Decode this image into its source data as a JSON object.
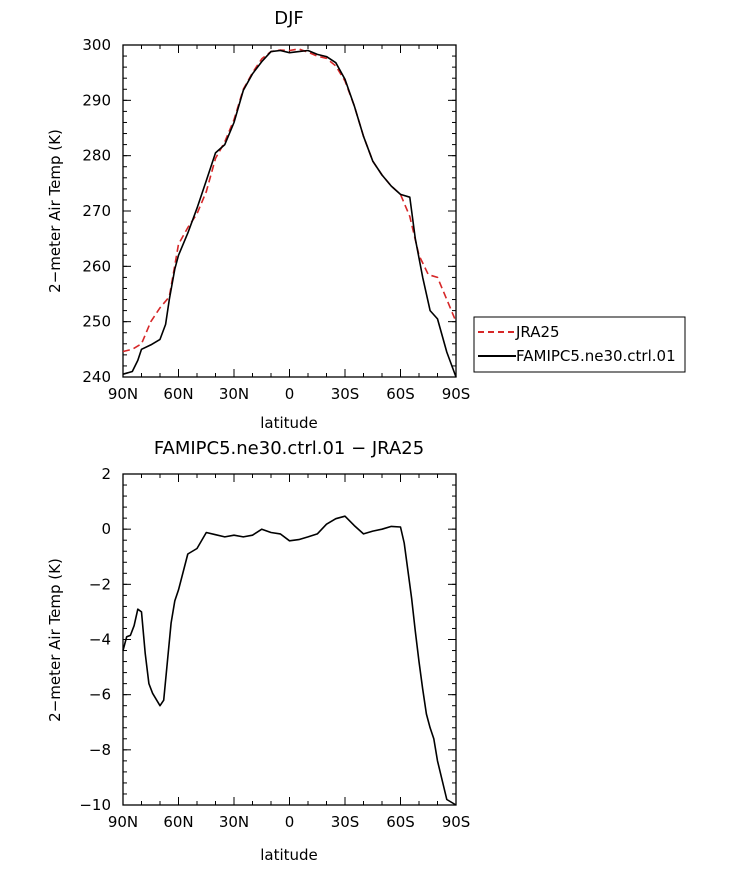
{
  "chart_data": [
    {
      "type": "line",
      "title": "DJF",
      "xlabel": "latitude",
      "ylabel": "2−meter Air Temp (K)",
      "x_ticks": [
        {
          "lat": -90,
          "label": "90N"
        },
        {
          "lat": -60,
          "label": "60N"
        },
        {
          "lat": -30,
          "label": "30N"
        },
        {
          "lat": 0,
          "label": "0"
        },
        {
          "lat": 30,
          "label": "30S"
        },
        {
          "lat": 60,
          "label": "60S"
        },
        {
          "lat": 90,
          "label": "90S"
        }
      ],
      "xlim": [
        -90,
        90
      ],
      "ylim": [
        240,
        300
      ],
      "y_ticks": [
        240,
        250,
        260,
        270,
        280,
        290,
        300
      ],
      "legend_position": "right",
      "series": [
        {
          "name": "JRA25",
          "color": "#d62728",
          "dash": "dashed",
          "x": [
            -90,
            -85,
            -80,
            -75,
            -70,
            -65,
            -60,
            -55,
            -50,
            -45,
            -40,
            -35,
            -30,
            -25,
            -20,
            -15,
            -10,
            -5,
            0,
            5,
            10,
            15,
            20,
            25,
            30,
            35,
            40,
            45,
            50,
            55,
            60,
            65,
            70,
            75,
            80,
            85,
            90
          ],
          "y": [
            244.6,
            245.0,
            246.0,
            250.0,
            252.5,
            254.5,
            264.0,
            267.0,
            269.5,
            273.5,
            279.5,
            282.5,
            286.5,
            292.0,
            295.0,
            297.5,
            298.8,
            299.1,
            299.0,
            299.3,
            298.7,
            298.0,
            297.6,
            296.2,
            293.5,
            289.0,
            283.5,
            279.0,
            276.5,
            274.5,
            273.0,
            269.0,
            262.0,
            258.5,
            258.0,
            254.0,
            250.0
          ]
        },
        {
          "name": "FAMIPC5.ne30.ctrl.01",
          "color": "#000000",
          "dash": "solid",
          "x": [
            -90,
            -85,
            -82,
            -80,
            -75,
            -70,
            -67,
            -65,
            -62,
            -60,
            -55,
            -50,
            -45,
            -40,
            -35,
            -30,
            -25,
            -20,
            -15,
            -10,
            -5,
            0,
            5,
            10,
            15,
            20,
            25,
            30,
            35,
            40,
            45,
            50,
            55,
            60,
            65,
            68,
            72,
            76,
            80,
            85,
            90
          ],
          "y": [
            240.5,
            241.0,
            243.0,
            245.0,
            245.8,
            246.8,
            249.5,
            254.0,
            259.5,
            262.0,
            266.0,
            270.5,
            275.5,
            280.5,
            282.0,
            286.0,
            291.8,
            294.8,
            297.0,
            298.8,
            299.0,
            298.6,
            298.8,
            299.0,
            298.3,
            297.9,
            296.8,
            293.8,
            289.0,
            283.5,
            279.0,
            276.5,
            274.5,
            273.0,
            272.5,
            265.0,
            258.0,
            252.0,
            250.5,
            244.5,
            240.0
          ]
        }
      ]
    },
    {
      "type": "line",
      "title": "FAMIPC5.ne30.ctrl.01  −  JRA25",
      "xlabel": "latitude",
      "ylabel": "2−meter Air Temp (K)",
      "x_ticks": [
        {
          "lat": -90,
          "label": "90N"
        },
        {
          "lat": -60,
          "label": "60N"
        },
        {
          "lat": -30,
          "label": "30N"
        },
        {
          "lat": 0,
          "label": "0"
        },
        {
          "lat": 30,
          "label": "30S"
        },
        {
          "lat": 60,
          "label": "60S"
        },
        {
          "lat": 90,
          "label": "90S"
        }
      ],
      "xlim": [
        -90,
        90
      ],
      "ylim": [
        -10,
        2
      ],
      "y_ticks": [
        -10,
        -8,
        -6,
        -4,
        -2,
        0,
        2
      ],
      "series": [
        {
          "color": "#000000",
          "dash": "solid",
          "x": [
            -90,
            -88,
            -86,
            -84,
            -82,
            -80,
            -78,
            -76,
            -74,
            -70,
            -68,
            -66,
            -64,
            -62,
            -60,
            -55,
            -50,
            -45,
            -40,
            -35,
            -30,
            -25,
            -20,
            -15,
            -10,
            -5,
            0,
            5,
            10,
            15,
            20,
            25,
            30,
            35,
            40,
            45,
            50,
            55,
            60,
            62,
            64,
            66,
            68,
            70,
            72,
            74,
            76,
            78,
            80,
            85,
            90
          ],
          "y": [
            -4.4,
            -3.9,
            -3.85,
            -3.5,
            -2.9,
            -3.0,
            -4.5,
            -5.6,
            -5.95,
            -6.4,
            -6.2,
            -4.8,
            -3.4,
            -2.6,
            -2.2,
            -0.9,
            -0.7,
            -0.12,
            -0.2,
            -0.28,
            -0.22,
            -0.28,
            -0.22,
            0.0,
            -0.12,
            -0.17,
            -0.42,
            -0.38,
            -0.28,
            -0.17,
            0.18,
            0.38,
            0.47,
            0.13,
            -0.17,
            -0.07,
            0.0,
            0.1,
            0.08,
            -0.5,
            -1.5,
            -2.5,
            -3.7,
            -4.8,
            -5.8,
            -6.7,
            -7.2,
            -7.6,
            -8.4,
            -9.8,
            -10.0
          ]
        }
      ]
    }
  ]
}
